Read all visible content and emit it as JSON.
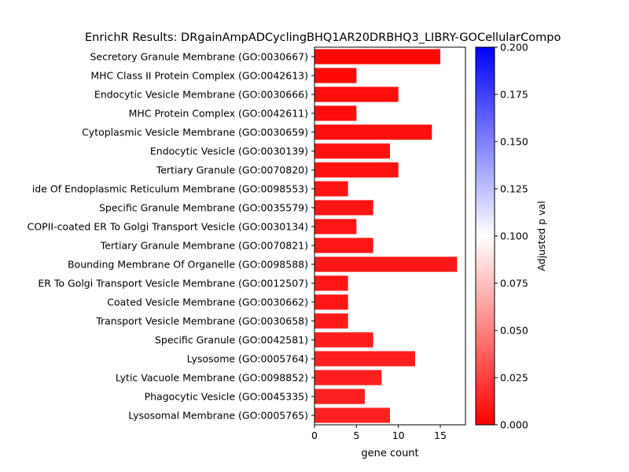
{
  "chart_data": {
    "type": "bar",
    "orientation": "horizontal",
    "title": "EnrichR Results: DRgainAmpADCyclingBHQ1AR20DRBHQ3_LIBRY-GOCellularCompo",
    "xlabel": "gene count",
    "ylabel": "",
    "xlim": [
      0,
      18
    ],
    "xticks": [
      0,
      5,
      10,
      15
    ],
    "grid": false,
    "categories": [
      "Secretory Granule Membrane (GO:0030667)",
      "MHC Class II Protein Complex (GO:0042613)",
      "Endocytic Vesicle Membrane (GO:0030666)",
      "MHC Protein Complex (GO:0042611)",
      "Cytoplasmic Vesicle Membrane (GO:0030659)",
      "Endocytic Vesicle (GO:0030139)",
      "Tertiary Granule (GO:0070820)",
      "ide Of Endoplasmic Reticulum Membrane (GO:0098553)",
      "Specific Granule Membrane (GO:0035579)",
      "COPII-coated ER To Golgi Transport Vesicle (GO:0030134)",
      "Tertiary Granule Membrane (GO:0070821)",
      "Bounding Membrane Of Organelle (GO:0098588)",
      "ER To Golgi Transport Vesicle Membrane (GO:0012507)",
      "Coated Vesicle Membrane (GO:0030662)",
      "Transport Vesicle Membrane (GO:0030658)",
      "Specific Granule (GO:0042581)",
      "Lysosome (GO:0005764)",
      "Lytic Vacuole Membrane (GO:0098852)",
      "Phagocytic Vesicle (GO:0045335)",
      "Lysosomal Membrane (GO:0005765)"
    ],
    "values": [
      15,
      5,
      10,
      5,
      14,
      9,
      10,
      4,
      7,
      5,
      7,
      17,
      4,
      4,
      4,
      7,
      12,
      8,
      6,
      9
    ],
    "adjusted_p_values": [
      0.003,
      0.004,
      0.005,
      0.005,
      0.006,
      0.007,
      0.007,
      0.008,
      0.008,
      0.009,
      0.009,
      0.01,
      0.01,
      0.01,
      0.011,
      0.012,
      0.013,
      0.013,
      0.014,
      0.014
    ],
    "colorbar": {
      "label": "Adjusted p val",
      "range": [
        0,
        0.2
      ],
      "ticks": [
        "0.000",
        "0.025",
        "0.050",
        "0.075",
        "0.100",
        "0.125",
        "0.150",
        "0.175",
        "0.200"
      ],
      "colormap": [
        "#ff0000",
        "#ffffff",
        "#0000ff"
      ]
    }
  }
}
